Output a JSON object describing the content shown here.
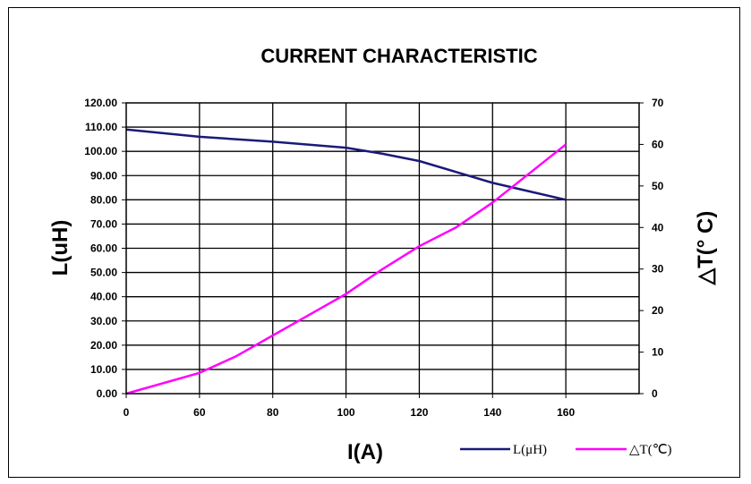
{
  "chart_data": {
    "type": "line",
    "title": "CURRENT CHARACTERISTIC",
    "xlabel": "I(A)",
    "ylabel_left": "L(uH)",
    "ylabel_right": "△T(° C)",
    "x_ticks": [
      "0",
      "60",
      "80",
      "100",
      "120",
      "140",
      "160"
    ],
    "y_left_ticks": [
      "0.00",
      "10.00",
      "20.00",
      "30.00",
      "40.00",
      "50.00",
      "60.00",
      "70.00",
      "80.00",
      "90.00",
      "100.00",
      "110.00",
      "120.00"
    ],
    "y_right_ticks": [
      "0",
      "10",
      "20",
      "30",
      "40",
      "50",
      "60",
      "70"
    ],
    "ylim_left": [
      0,
      120
    ],
    "ylim_right": [
      0,
      70
    ],
    "grid": true,
    "legend_position": "bottom-right",
    "series": [
      {
        "name": "L(μH)",
        "axis": "left",
        "color": "#1a1a7a",
        "x": [
          "0",
          "60",
          "80",
          "100",
          "110",
          "120",
          "130",
          "140",
          "150",
          "160"
        ],
        "values": [
          109,
          106,
          104,
          101.5,
          99,
          96,
          91.5,
          87,
          83.5,
          80
        ]
      },
      {
        "name": "△T(℃)",
        "axis": "right",
        "color": "#ff00ff",
        "x": [
          "0",
          "60",
          "70",
          "80",
          "90",
          "100",
          "110",
          "120",
          "130",
          "140",
          "150",
          "160"
        ],
        "values": [
          0,
          5,
          9,
          14,
          19,
          24,
          30,
          35.5,
          40,
          46,
          53,
          60
        ]
      }
    ]
  }
}
